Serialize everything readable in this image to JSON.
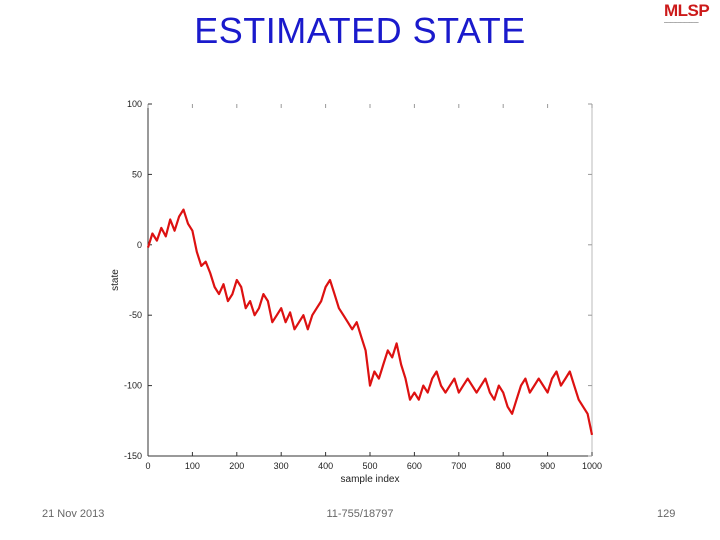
{
  "slide": {
    "title": "ESTIMATED STATE",
    "logo": "MLSP",
    "footer_date": "21 Nov 2013",
    "footer_course": "11-755/18797",
    "page_number": "129"
  },
  "colors": {
    "title": "#1a1acc",
    "series": "#dd1111",
    "logo": "#cc1a1a"
  },
  "chart_data": {
    "type": "line",
    "xlabel": "sample index",
    "ylabel": "state",
    "xlim": [
      0,
      1000
    ],
    "ylim": [
      -150,
      100
    ],
    "xticks": [
      0,
      100,
      200,
      300,
      400,
      500,
      600,
      700,
      800,
      900,
      1000
    ],
    "yticks": [
      100,
      50,
      0,
      -50,
      -100,
      -150
    ],
    "grid": false,
    "series": [
      {
        "x": [
          0,
          10,
          20,
          30,
          40,
          50,
          60,
          70,
          80,
          90,
          100,
          110,
          120,
          130,
          140,
          150,
          160,
          170,
          180,
          190,
          200,
          210,
          220,
          230,
          240,
          250,
          260,
          270,
          280,
          290,
          300,
          310,
          320,
          330,
          340,
          350,
          360,
          370,
          380,
          390,
          400,
          410,
          420,
          430,
          440,
          450,
          460,
          470,
          480,
          490,
          500,
          510,
          520,
          530,
          540,
          550,
          560,
          570,
          580,
          590,
          600,
          610,
          620,
          630,
          640,
          650,
          660,
          670,
          680,
          690,
          700,
          710,
          720,
          730,
          740,
          750,
          760,
          770,
          780,
          790,
          800,
          810,
          820,
          830,
          840,
          850,
          860,
          870,
          880,
          890,
          900,
          910,
          920,
          930,
          940,
          950,
          960,
          970,
          980,
          990,
          1000
        ],
        "y": [
          -2,
          8,
          3,
          12,
          6,
          18,
          10,
          20,
          25,
          15,
          10,
          -5,
          -15,
          -12,
          -20,
          -30,
          -35,
          -28,
          -40,
          -35,
          -25,
          -30,
          -45,
          -40,
          -50,
          -45,
          -35,
          -40,
          -55,
          -50,
          -45,
          -55,
          -48,
          -60,
          -55,
          -50,
          -60,
          -50,
          -45,
          -40,
          -30,
          -25,
          -35,
          -45,
          -50,
          -55,
          -60,
          -55,
          -65,
          -75,
          -100,
          -90,
          -95,
          -85,
          -75,
          -80,
          -70,
          -85,
          -95,
          -110,
          -105,
          -110,
          -100,
          -105,
          -95,
          -90,
          -100,
          -105,
          -100,
          -95,
          -105,
          -100,
          -95,
          -100,
          -105,
          -100,
          -95,
          -105,
          -110,
          -100,
          -105,
          -115,
          -120,
          -110,
          -100,
          -95,
          -105,
          -100,
          -95,
          -100,
          -105,
          -95,
          -90,
          -100,
          -95,
          -90,
          -100,
          -110,
          -115,
          -120,
          -135
        ]
      }
    ]
  }
}
